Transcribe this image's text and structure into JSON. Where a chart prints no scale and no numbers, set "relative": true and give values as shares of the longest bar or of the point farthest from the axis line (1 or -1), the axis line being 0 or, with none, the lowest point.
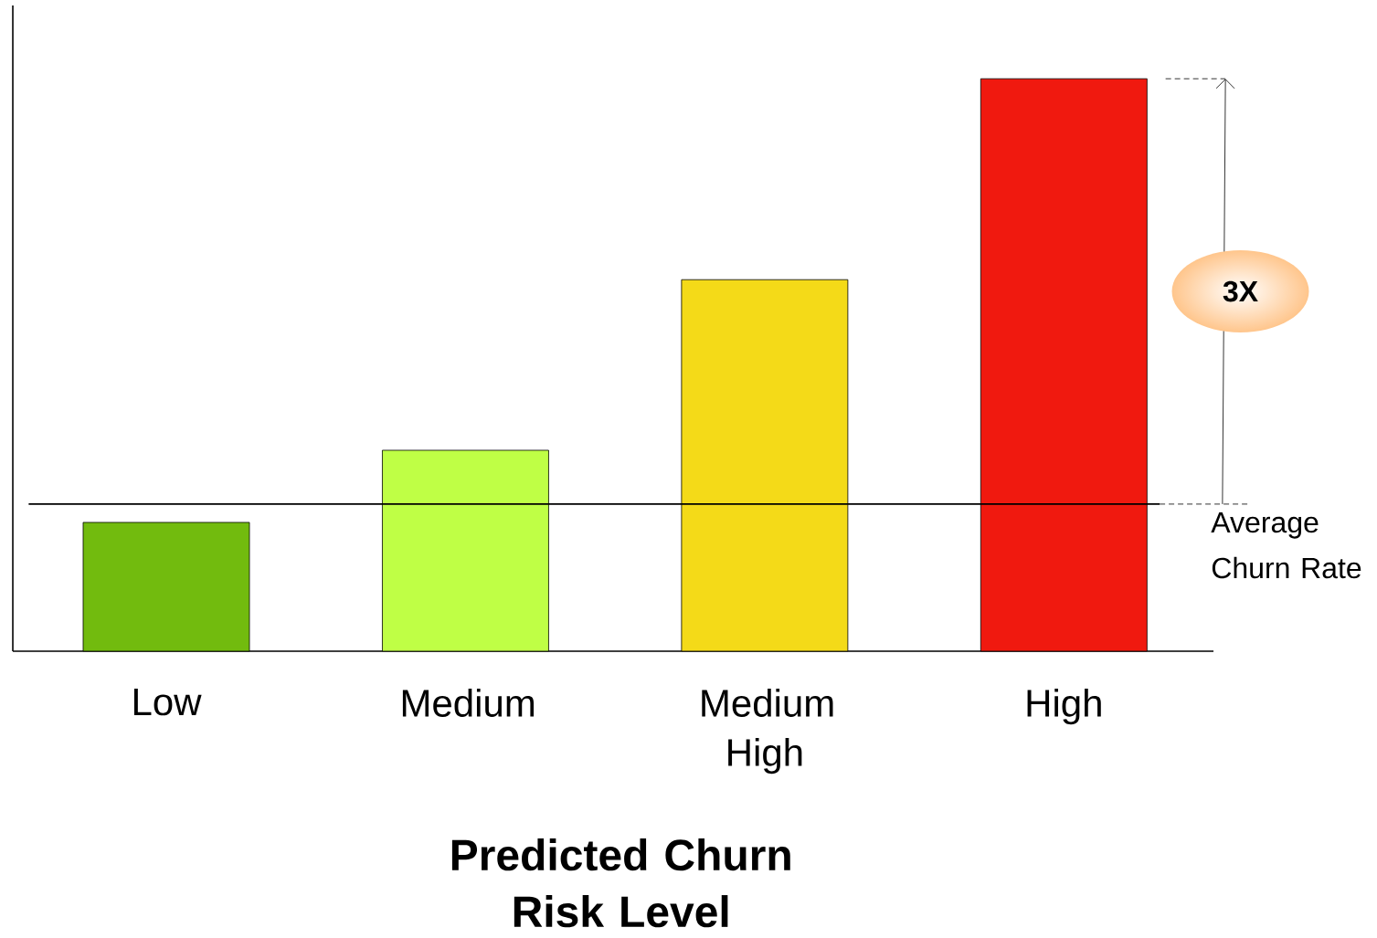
{
  "chart_data": {
    "type": "bar",
    "relative": true,
    "xlabel": "Predicted Churn Risk Level",
    "categories": [
      "Low",
      "Medium",
      "Medium High",
      "High"
    ],
    "values": [
      0.225,
      0.351,
      0.649,
      1
    ],
    "colors": [
      "#72bb0e",
      "#bfff45",
      "#f4da18",
      "#f0190f"
    ],
    "ref_lines": [
      {
        "axis": "y",
        "value": 0.257,
        "label": "Average Churn Rate"
      }
    ],
    "annotations": [
      "3X"
    ]
  }
}
